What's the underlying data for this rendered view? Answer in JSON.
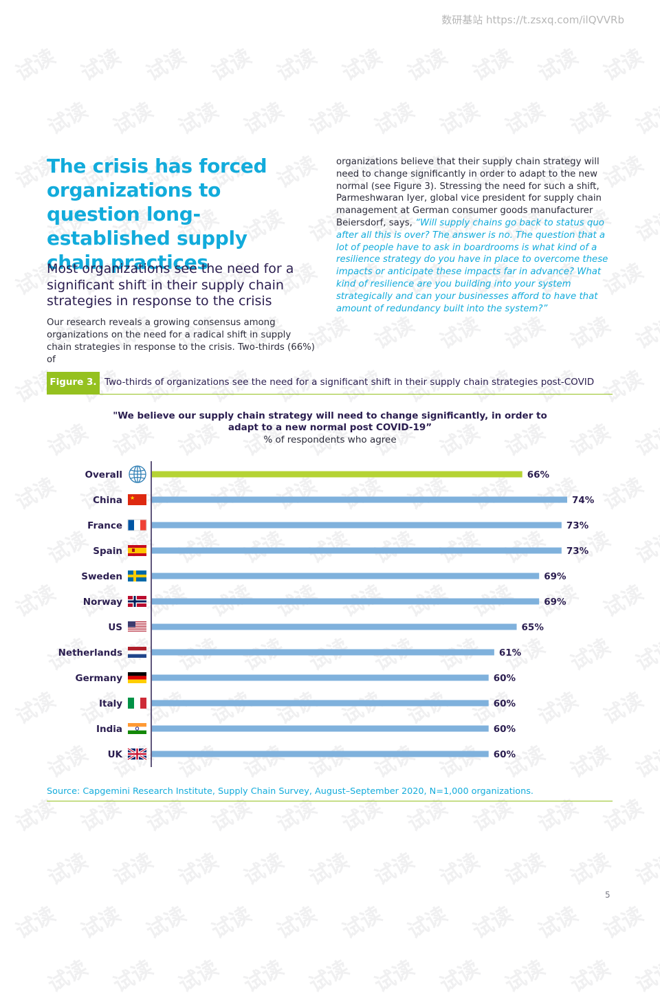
{
  "header": {
    "url_text": "数研基站 https://t.zsxq.com/ilQVVRb"
  },
  "watermark": {
    "text": "试读"
  },
  "article": {
    "title": "The crisis has forced organizations to question long-established supply chain practices",
    "subtitle": "Most organizations see the need for a significant shift in their supply chain strategies in response to the crisis",
    "left_paragraph": "Our research reveals a growing consensus among organizations on the need for a radical shift in supply chain strategies in response to the crisis. Two-thirds (66%) of",
    "right_paragraph_plain": "organizations believe that their supply chain strategy will need to change significantly in order to adapt to the new normal (see Figure 3). Stressing the need for such a shift, Parmeshwaran Iyer, global vice president for supply chain management at German consumer goods manufacturer Beiersdorf, says, ",
    "right_paragraph_quote": "“Will supply chains go back to status quo after all this is over? The answer is no. The question that a lot of people have to ask in boardrooms is what kind of a resilience strategy do you have in place to overcome these impacts or anticipate these impacts far in advance? What kind of resilience are you building into your system strategically and can your businesses afford to have that amount of redundancy built into the system?”"
  },
  "figure": {
    "label": "Figure 3.",
    "caption": "Two-thirds of organizations see the need for a significant shift in their supply chain strategies post-COVID"
  },
  "chart_data": {
    "type": "bar",
    "orientation": "horizontal",
    "title": "\"We believe our supply chain strategy will need to change significantly, in order to adapt to a new normal post COVID-19”",
    "subtitle": "% of respondents who agree",
    "categories": [
      "Overall",
      "China",
      "France",
      "Spain",
      "Sweden",
      "Norway",
      "US",
      "Netherlands",
      "Germany",
      "Italy",
      "India",
      "UK"
    ],
    "values": [
      66,
      74,
      73,
      73,
      69,
      69,
      65,
      61,
      60,
      60,
      60,
      60
    ],
    "value_labels": [
      "66%",
      "74%",
      "73%",
      "73%",
      "69%",
      "69%",
      "65%",
      "61%",
      "60%",
      "60%",
      "60%",
      "60%"
    ],
    "icons": [
      "globe-icon",
      "flag-china-icon",
      "flag-france-icon",
      "flag-spain-icon",
      "flag-sweden-icon",
      "flag-norway-icon",
      "flag-us-icon",
      "flag-netherlands-icon",
      "flag-germany-icon",
      "flag-italy-icon",
      "flag-india-icon",
      "flag-uk-icon"
    ],
    "xlim": [
      0,
      74
    ],
    "xlabel": "",
    "ylabel": "",
    "grid": false,
    "colors": {
      "highlight": "#b5d334",
      "default": "#7fb1dc",
      "axis": "#2a1d4f"
    }
  },
  "source": "Source: Capgemini Research Institute, Supply Chain Survey, August–September 2020, N=1,000 organizations.",
  "page_number": "5"
}
